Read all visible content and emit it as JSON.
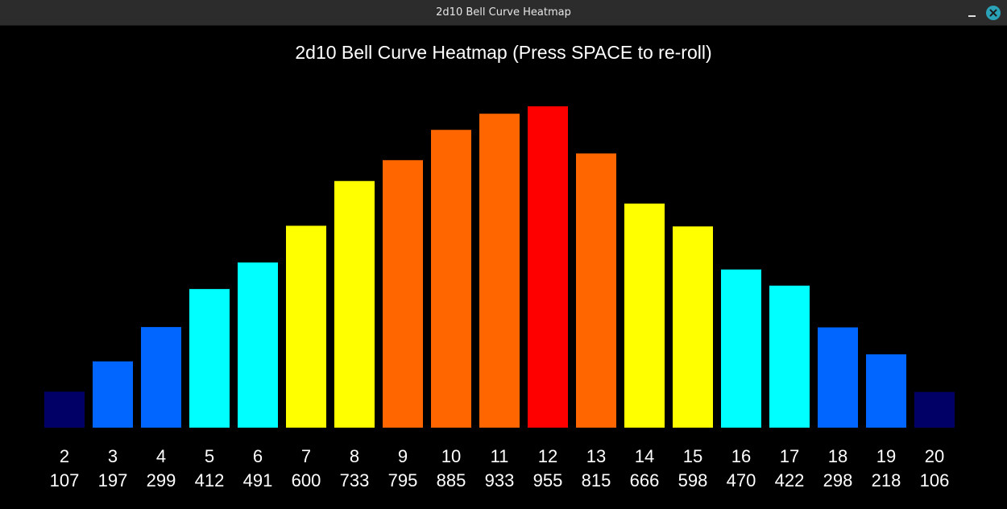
{
  "window": {
    "title": "2d10 Bell Curve Heatmap"
  },
  "chart_data": {
    "type": "bar",
    "title": "2d10 Bell Curve Heatmap (Press SPACE to re-roll)",
    "xlabel": "",
    "ylabel": "",
    "categories": [
      "2",
      "3",
      "4",
      "5",
      "6",
      "7",
      "8",
      "9",
      "10",
      "11",
      "12",
      "13",
      "14",
      "15",
      "16",
      "17",
      "18",
      "19",
      "20"
    ],
    "values": [
      107,
      197,
      299,
      412,
      491,
      600,
      733,
      795,
      885,
      933,
      955,
      815,
      666,
      598,
      470,
      422,
      298,
      218,
      106
    ],
    "colors": [
      "#000066",
      "#0066ff",
      "#0066ff",
      "#00ffff",
      "#00ffff",
      "#ffff00",
      "#ffff00",
      "#ff6600",
      "#ff6600",
      "#ff6600",
      "#ff0000",
      "#ff6600",
      "#ffff00",
      "#ffff00",
      "#00ffff",
      "#00ffff",
      "#0066ff",
      "#0066ff",
      "#000066"
    ],
    "ylim": [
      0,
      955
    ],
    "grid": false,
    "legend": "none"
  }
}
